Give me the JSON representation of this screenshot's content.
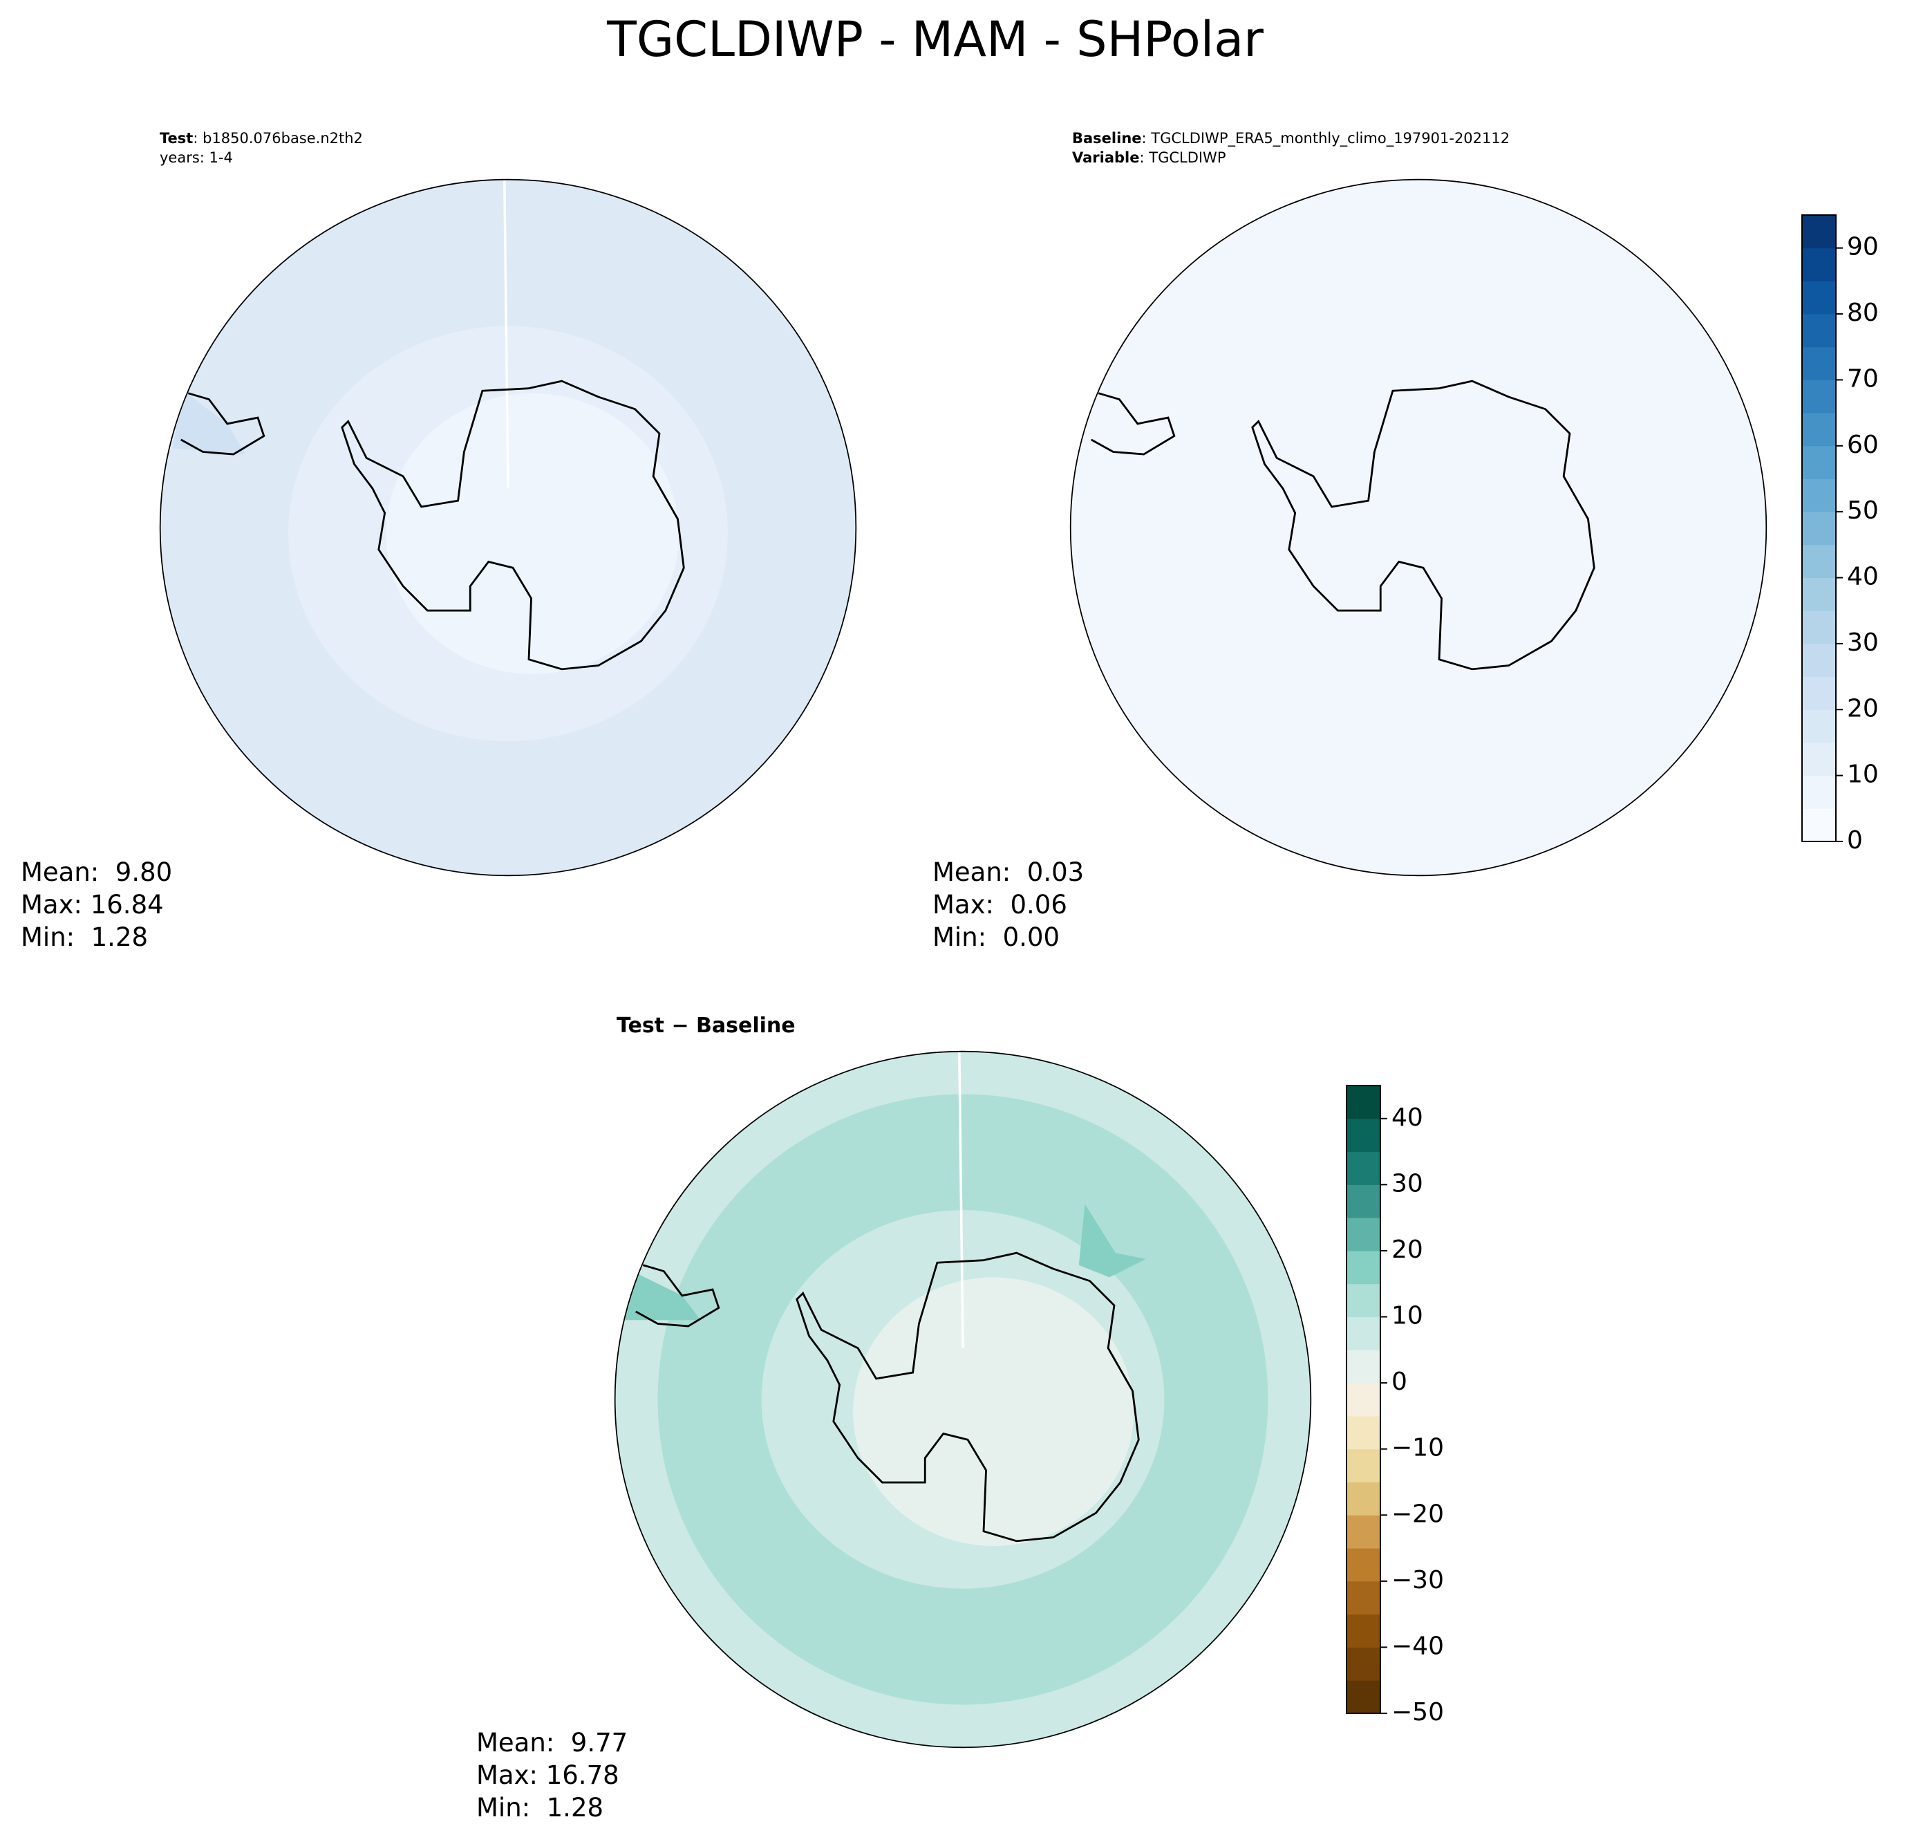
{
  "header": {
    "title": "TGCLDIWP - MAM - SHPolar"
  },
  "panels": [
    {
      "lines": [
        [
          "Test",
          ": b1850.076base.n2th2"
        ],
        [
          "years: 1-4"
        ]
      ],
      "stats": [
        "Mean:  9.80",
        "Max: 16.84",
        "Min:  1.28"
      ]
    },
    {
      "lines": [
        [
          "Baseline",
          ": TGCLDIWP_ERA5_monthly_climo_197901-202112"
        ],
        [
          "Variable",
          ": TGCLDIWP"
        ]
      ],
      "stats": [
        "Mean:  0.03",
        "Max:  0.06",
        "Min:  0.00"
      ]
    },
    {
      "lines": [
        [
          "Test − Baseline"
        ]
      ],
      "stats": [
        "Mean:  9.77",
        "Max: 16.78",
        "Min:  1.28"
      ]
    }
  ],
  "colorbars": [
    {
      "lim": [
        0,
        95
      ],
      "ticks": [
        0,
        10,
        20,
        30,
        40,
        50,
        60,
        70,
        80,
        90
      ],
      "colors": [
        "#f7fbff",
        "#eef5fc",
        "#e3eef9",
        "#d9e8f5",
        "#cfe1f2",
        "#c4daee",
        "#b5d4e9",
        "#a4cce3",
        "#91c3de",
        "#7cb7da",
        "#68acd5",
        "#56a0ce",
        "#4592c6",
        "#3584bf",
        "#2575b7",
        "#1966ad",
        "#0e58a2",
        "#08488e",
        "#083877"
      ]
    },
    {
      "lim": [
        -50,
        45
      ],
      "ticks": [
        {
          "value": -50,
          "label": "−50"
        },
        {
          "value": -40,
          "label": "−40"
        },
        {
          "value": -30,
          "label": "−30"
        },
        {
          "value": -20,
          "label": "−20"
        },
        {
          "value": -10,
          "label": "−10"
        },
        0,
        10,
        20,
        30,
        40
      ],
      "colors": [
        "#5e3505",
        "#754308",
        "#8c510a",
        "#a4661a",
        "#bc7e2d",
        "#cf9c50",
        "#dfc17a",
        "#ecd79c",
        "#f4e6bf",
        "#f6efdf",
        "#e6f1ee",
        "#cce9e5",
        "#addfd7",
        "#86cfc3",
        "#5fb3a9",
        "#3a968d",
        "#1b7c73",
        "#0a655b",
        "#024d40"
      ]
    }
  ]
}
